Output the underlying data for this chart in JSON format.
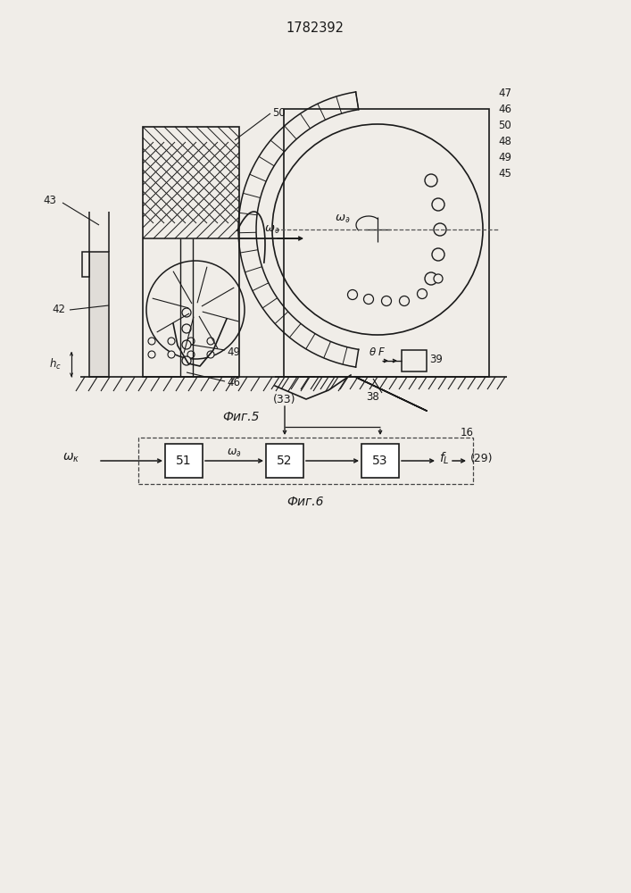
{
  "title": "1782392",
  "bg_color": "#f0ede8",
  "line_color": "#1a1a1a",
  "fig5_caption": "Фиг.5",
  "fig6_caption": "Фиг.6"
}
